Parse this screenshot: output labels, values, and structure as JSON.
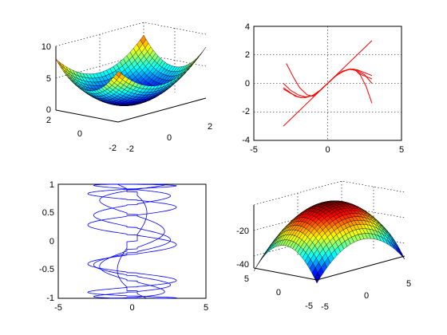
{
  "chart_data": [
    {
      "panel": "top-left",
      "type": "surface",
      "function": "z = x^2 + y^2",
      "colormap": "jet",
      "x_range": [
        -2,
        2
      ],
      "y_range": [
        -2,
        2
      ],
      "z_range": [
        0,
        10
      ],
      "x_ticks": [
        "-2",
        "0",
        "2"
      ],
      "y_ticks": [
        "-2",
        "0",
        "2"
      ],
      "z_ticks": [
        "0",
        "5",
        "10"
      ],
      "grid": true
    },
    {
      "panel": "top-right",
      "type": "line",
      "line_color": "#ff0000",
      "xlim": [
        -5,
        5
      ],
      "ylim": [
        -4,
        4
      ],
      "x_ticks": [
        "-5",
        "0",
        "5"
      ],
      "y_ticks": [
        "-4",
        "-2",
        "0",
        "2",
        "4"
      ],
      "grid": true,
      "series": [
        {
          "x": [
            -3,
            3
          ],
          "y": [
            -3,
            3
          ]
        },
        {
          "x": [
            -2.8,
            -2.3,
            -1.9,
            -1.4,
            -1.0,
            -0.5,
            0.0,
            0.5,
            1.0,
            1.5,
            1.9,
            2.3,
            2.8,
            3.0
          ],
          "y": [
            1.4,
            0.4,
            -0.3,
            -0.8,
            -0.9,
            -0.5,
            0.0,
            0.5,
            0.8,
            1.0,
            0.9,
            0.6,
            0.4,
            0.3
          ]
        },
        {
          "x": [
            -3.0,
            -2.5,
            -2.0,
            -1.5,
            -1.0,
            -0.5,
            0.0,
            0.5,
            1.0,
            1.5,
            2.0,
            2.5,
            3.0
          ],
          "y": [
            0.0,
            -0.5,
            -0.8,
            -0.95,
            -0.85,
            -0.5,
            0.0,
            0.5,
            0.85,
            0.98,
            0.9,
            0.6,
            0.0
          ]
        },
        {
          "x": [
            -3.0,
            -2.6,
            -2.2,
            -1.8,
            -1.4,
            -1.0,
            -0.5,
            0.0,
            0.5,
            1.0,
            1.4,
            1.8,
            2.2,
            2.6,
            3.0
          ],
          "y": [
            -0.3,
            -0.6,
            -0.9,
            -1.0,
            -0.95,
            -0.85,
            -0.48,
            0.0,
            0.48,
            0.85,
            0.98,
            1.0,
            0.6,
            -0.2,
            -1.4
          ]
        },
        {
          "x": [
            -3.0,
            -2.5,
            -2.0,
            -1.5,
            -1.0,
            -0.5,
            0.0,
            0.5,
            1.0,
            1.5,
            2.0,
            2.5,
            3.0
          ],
          "y": [
            -0.4,
            -0.7,
            -0.95,
            -1.0,
            -0.84,
            -0.47,
            0.0,
            0.47,
            0.84,
            1.0,
            0.95,
            0.75,
            0.55
          ]
        }
      ]
    },
    {
      "panel": "bottom-left",
      "type": "line",
      "line_color": "#0000ff",
      "xlim": [
        -5,
        5
      ],
      "ylim": [
        -1,
        1
      ],
      "x_ticks": [
        "-5",
        "0",
        "5"
      ],
      "y_ticks": [
        "-1",
        "-0.5",
        "0",
        "0.5",
        "1"
      ],
      "grid": false,
      "series": [
        {
          "name": "",
          "x_function": "x = a*sin(k*t + phase)",
          "amplitudes": [
            1,
            2.2,
            2.6,
            3.0
          ],
          "y_function": "y = sin(t)"
        }
      ]
    },
    {
      "panel": "bottom-right",
      "type": "surface",
      "function": "z = -(x^2 + y^2)",
      "colormap": "jet",
      "x_range": [
        -5,
        5
      ],
      "y_range": [
        -5,
        5
      ],
      "z_range": [
        -50,
        0
      ],
      "x_ticks": [
        "-5",
        "0",
        "5"
      ],
      "y_ticks": [
        "-5",
        "0",
        "5"
      ],
      "z_ticks": [
        "-40",
        "-20"
      ],
      "grid": true
    }
  ]
}
